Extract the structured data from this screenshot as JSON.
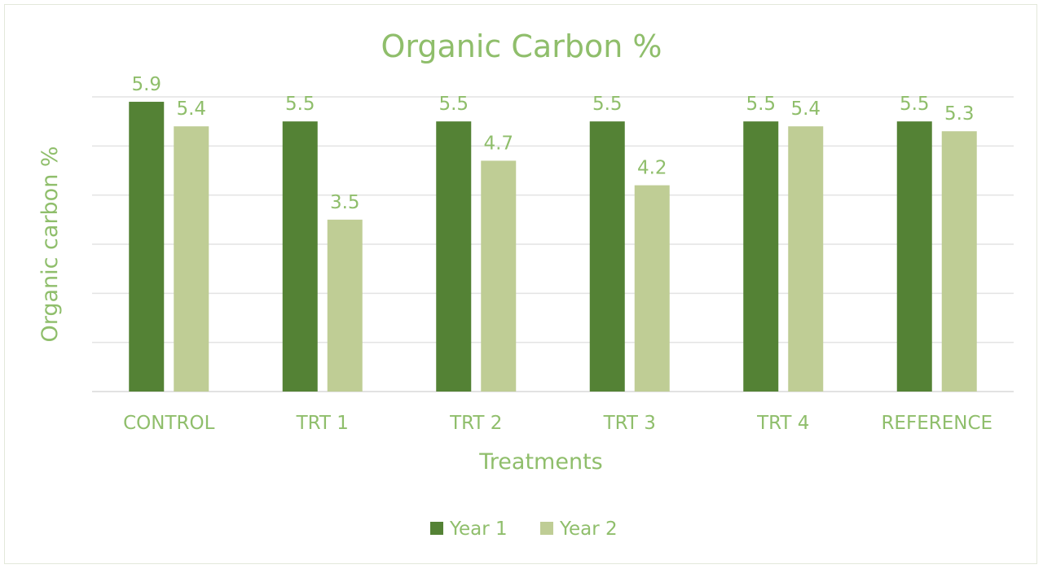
{
  "chart_data": {
    "type": "bar",
    "title": "Organic Carbon %",
    "xlabel": "Treatments",
    "ylabel": "Organic carbon %",
    "categories": [
      "CONTROL",
      "TRT 1",
      "TRT 2",
      "TRT 3",
      "TRT 4",
      "REFERENCE"
    ],
    "series": [
      {
        "name": "Year 1",
        "values": [
          5.9,
          5.5,
          5.5,
          5.5,
          5.5,
          5.5
        ],
        "color": "#548235"
      },
      {
        "name": "Year 2",
        "values": [
          5.4,
          3.5,
          4.7,
          4.2,
          5.4,
          5.3
        ],
        "color": "#bfcd95"
      }
    ],
    "ylim": [
      0,
      6
    ],
    "y_gridlines": [
      1,
      2,
      3,
      4,
      5,
      6
    ],
    "y_tick_labels_shown": false,
    "grid": true,
    "legend": "bottom",
    "data_labels": true
  }
}
